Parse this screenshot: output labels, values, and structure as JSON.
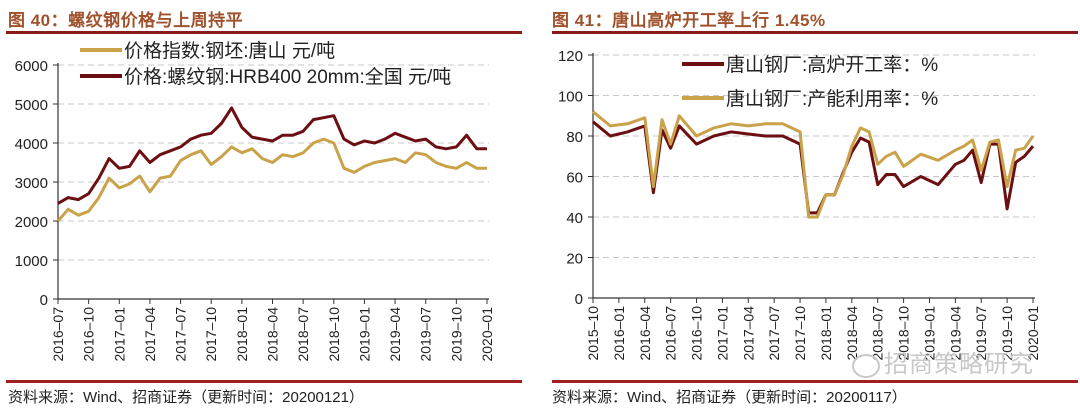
{
  "left": {
    "title": "图 40：螺纹钢价格与上周持平",
    "source": "资料来源：Wind、招商证券（更新时间：20200121）"
  },
  "right": {
    "title": "图 41：唐山高炉开工率上行 1.45%",
    "source": "资料来源：Wind、招商证券（更新时间：20200117）",
    "watermark": "招商策略研究"
  },
  "colors": {
    "gold": "#c9a24a",
    "maroon": "#6b0f12",
    "title": "#a0522d",
    "rule": "#8b1a1a",
    "grid": "#c8c8c8"
  },
  "chart_data": [
    {
      "type": "line",
      "title": "螺纹钢价格与上周持平",
      "xlabel": "",
      "ylabel": "元/吨",
      "ylim": [
        0,
        6000
      ],
      "yticks": [
        0,
        1000,
        2000,
        3000,
        4000,
        5000,
        6000
      ],
      "xticks": [
        "2016-07",
        "2016-10",
        "2017-01",
        "2017-04",
        "2017-07",
        "2017-10",
        "2018-01",
        "2018-04",
        "2018-07",
        "2018-10",
        "2019-01",
        "2019-04",
        "2019-07",
        "2019-10",
        "2020-01"
      ],
      "grid": true,
      "legend_position": "top-left",
      "x": [
        "2016-07",
        "2016-08",
        "2016-09",
        "2016-10",
        "2016-11",
        "2016-12",
        "2017-01",
        "2017-02",
        "2017-03",
        "2017-04",
        "2017-05",
        "2017-06",
        "2017-07",
        "2017-08",
        "2017-09",
        "2017-10",
        "2017-11",
        "2017-12",
        "2018-01",
        "2018-02",
        "2018-03",
        "2018-04",
        "2018-05",
        "2018-06",
        "2018-07",
        "2018-08",
        "2018-09",
        "2018-10",
        "2018-11",
        "2018-12",
        "2019-01",
        "2019-02",
        "2019-03",
        "2019-04",
        "2019-05",
        "2019-06",
        "2019-07",
        "2019-08",
        "2019-09",
        "2019-10",
        "2019-11",
        "2019-12",
        "2020-01"
      ],
      "series": [
        {
          "name": "价格指数:钢坯:唐山 元/吨",
          "color": "#c9a24a",
          "values": [
            2000,
            2300,
            2150,
            2250,
            2600,
            3100,
            2850,
            2950,
            3150,
            2750,
            3100,
            3150,
            3550,
            3700,
            3800,
            3450,
            3650,
            3900,
            3750,
            3850,
            3600,
            3500,
            3700,
            3650,
            3750,
            4000,
            4100,
            4000,
            3350,
            3250,
            3400,
            3500,
            3550,
            3600,
            3500,
            3750,
            3700,
            3500,
            3400,
            3350,
            3500,
            3350,
            3350
          ]
        },
        {
          "name": "价格:螺纹钢:HRB400 20mm:全国 元/吨",
          "color": "#6b0f12",
          "values": [
            2450,
            2600,
            2550,
            2700,
            3100,
            3600,
            3350,
            3400,
            3800,
            3500,
            3700,
            3800,
            3900,
            4100,
            4200,
            4250,
            4500,
            4900,
            4400,
            4150,
            4100,
            4050,
            4200,
            4200,
            4300,
            4600,
            4650,
            4700,
            4100,
            3950,
            4050,
            4000,
            4100,
            4250,
            4150,
            4050,
            4100,
            3900,
            3850,
            3900,
            4200,
            3850,
            3850
          ]
        }
      ]
    },
    {
      "type": "line",
      "title": "唐山高炉开工率上行 1.45%",
      "xlabel": "",
      "ylabel": "%",
      "ylim": [
        0,
        120
      ],
      "yticks": [
        0,
        20,
        40,
        60,
        80,
        100,
        120
      ],
      "xticks": [
        "2015-10",
        "2016-01",
        "2016-04",
        "2016-07",
        "2016-10",
        "2017-01",
        "2017-04",
        "2017-07",
        "2017-10",
        "2018-01",
        "2018-04",
        "2018-07",
        "2018-10",
        "2019-01",
        "2019-04",
        "2019-07",
        "2019-10",
        "2020-01"
      ],
      "grid": true,
      "legend_position": "top-center",
      "x": [
        "2015-10",
        "2015-12",
        "2016-02",
        "2016-04",
        "2016-05",
        "2016-06",
        "2016-07",
        "2016-08",
        "2016-10",
        "2016-12",
        "2017-02",
        "2017-04",
        "2017-06",
        "2017-08",
        "2017-10",
        "2017-11",
        "2017-12",
        "2018-01",
        "2018-02",
        "2018-03",
        "2018-04",
        "2018-05",
        "2018-06",
        "2018-07",
        "2018-08",
        "2018-09",
        "2018-10",
        "2018-12",
        "2019-02",
        "2019-04",
        "2019-05",
        "2019-06",
        "2019-07",
        "2019-08",
        "2019-09",
        "2019-10",
        "2019-11",
        "2019-12",
        "2020-01"
      ],
      "series": [
        {
          "name": "唐山钢厂:高炉开工率：%",
          "color": "#6b0f12",
          "values": [
            87,
            80,
            82,
            85,
            52,
            83,
            74,
            85,
            76,
            80,
            82,
            81,
            80,
            80,
            76,
            42,
            42,
            51,
            51,
            62,
            72,
            79,
            77,
            56,
            61,
            61,
            55,
            60,
            56,
            66,
            68,
            73,
            57,
            76,
            76,
            44,
            67,
            70,
            75
          ]
        },
        {
          "name": "唐山钢厂:产能利用率：%",
          "color": "#c9a24a",
          "values": [
            92,
            85,
            86,
            89,
            55,
            88,
            76,
            90,
            80,
            84,
            86,
            85,
            86,
            86,
            82,
            40,
            40,
            51,
            51,
            61,
            75,
            84,
            82,
            66,
            70,
            72,
            65,
            71,
            68,
            73,
            75,
            78,
            63,
            77,
            78,
            55,
            73,
            74,
            80
          ]
        }
      ]
    }
  ]
}
